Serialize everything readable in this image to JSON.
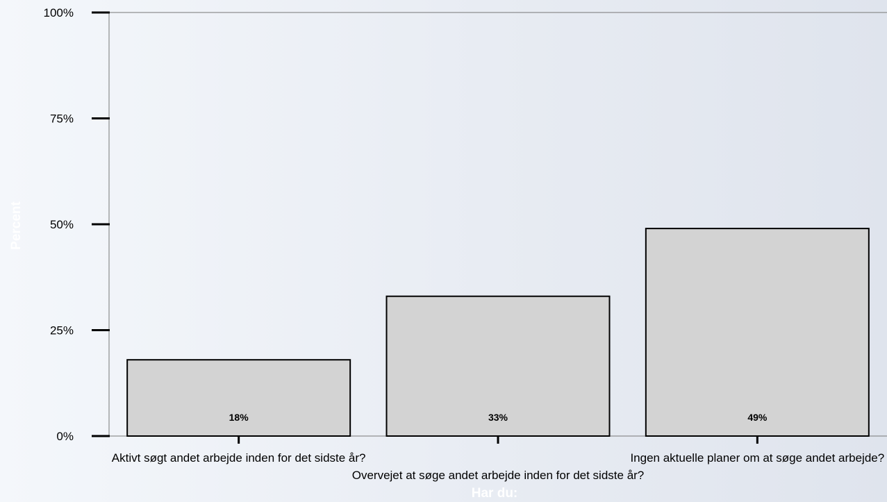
{
  "chart_data": {
    "type": "bar",
    "title": "",
    "xlabel": "Har du:",
    "ylabel": "Percent",
    "categories": [
      "Aktivt søgt andet arbejde inden for det sidste år?",
      "Overvejet at søge andet arbejde inden for det sidste år?",
      "Ingen aktuelle planer om at søge andet arbejde?"
    ],
    "values": [
      18,
      33,
      49
    ],
    "value_labels": [
      "18%",
      "33%",
      "49%"
    ],
    "ylim": [
      0,
      100
    ],
    "y_ticks": [
      {
        "value": 0,
        "label": "0%"
      },
      {
        "value": 25,
        "label": "25%"
      },
      {
        "value": 50,
        "label": "50%"
      },
      {
        "value": 75,
        "label": "75%"
      },
      {
        "value": 100,
        "label": "100%"
      }
    ],
    "grid": false,
    "colors": {
      "bar_fill": "#d3d3d3",
      "bar_stroke": "#000000",
      "axis": "#000000",
      "axis_title": "#ffffff"
    }
  }
}
